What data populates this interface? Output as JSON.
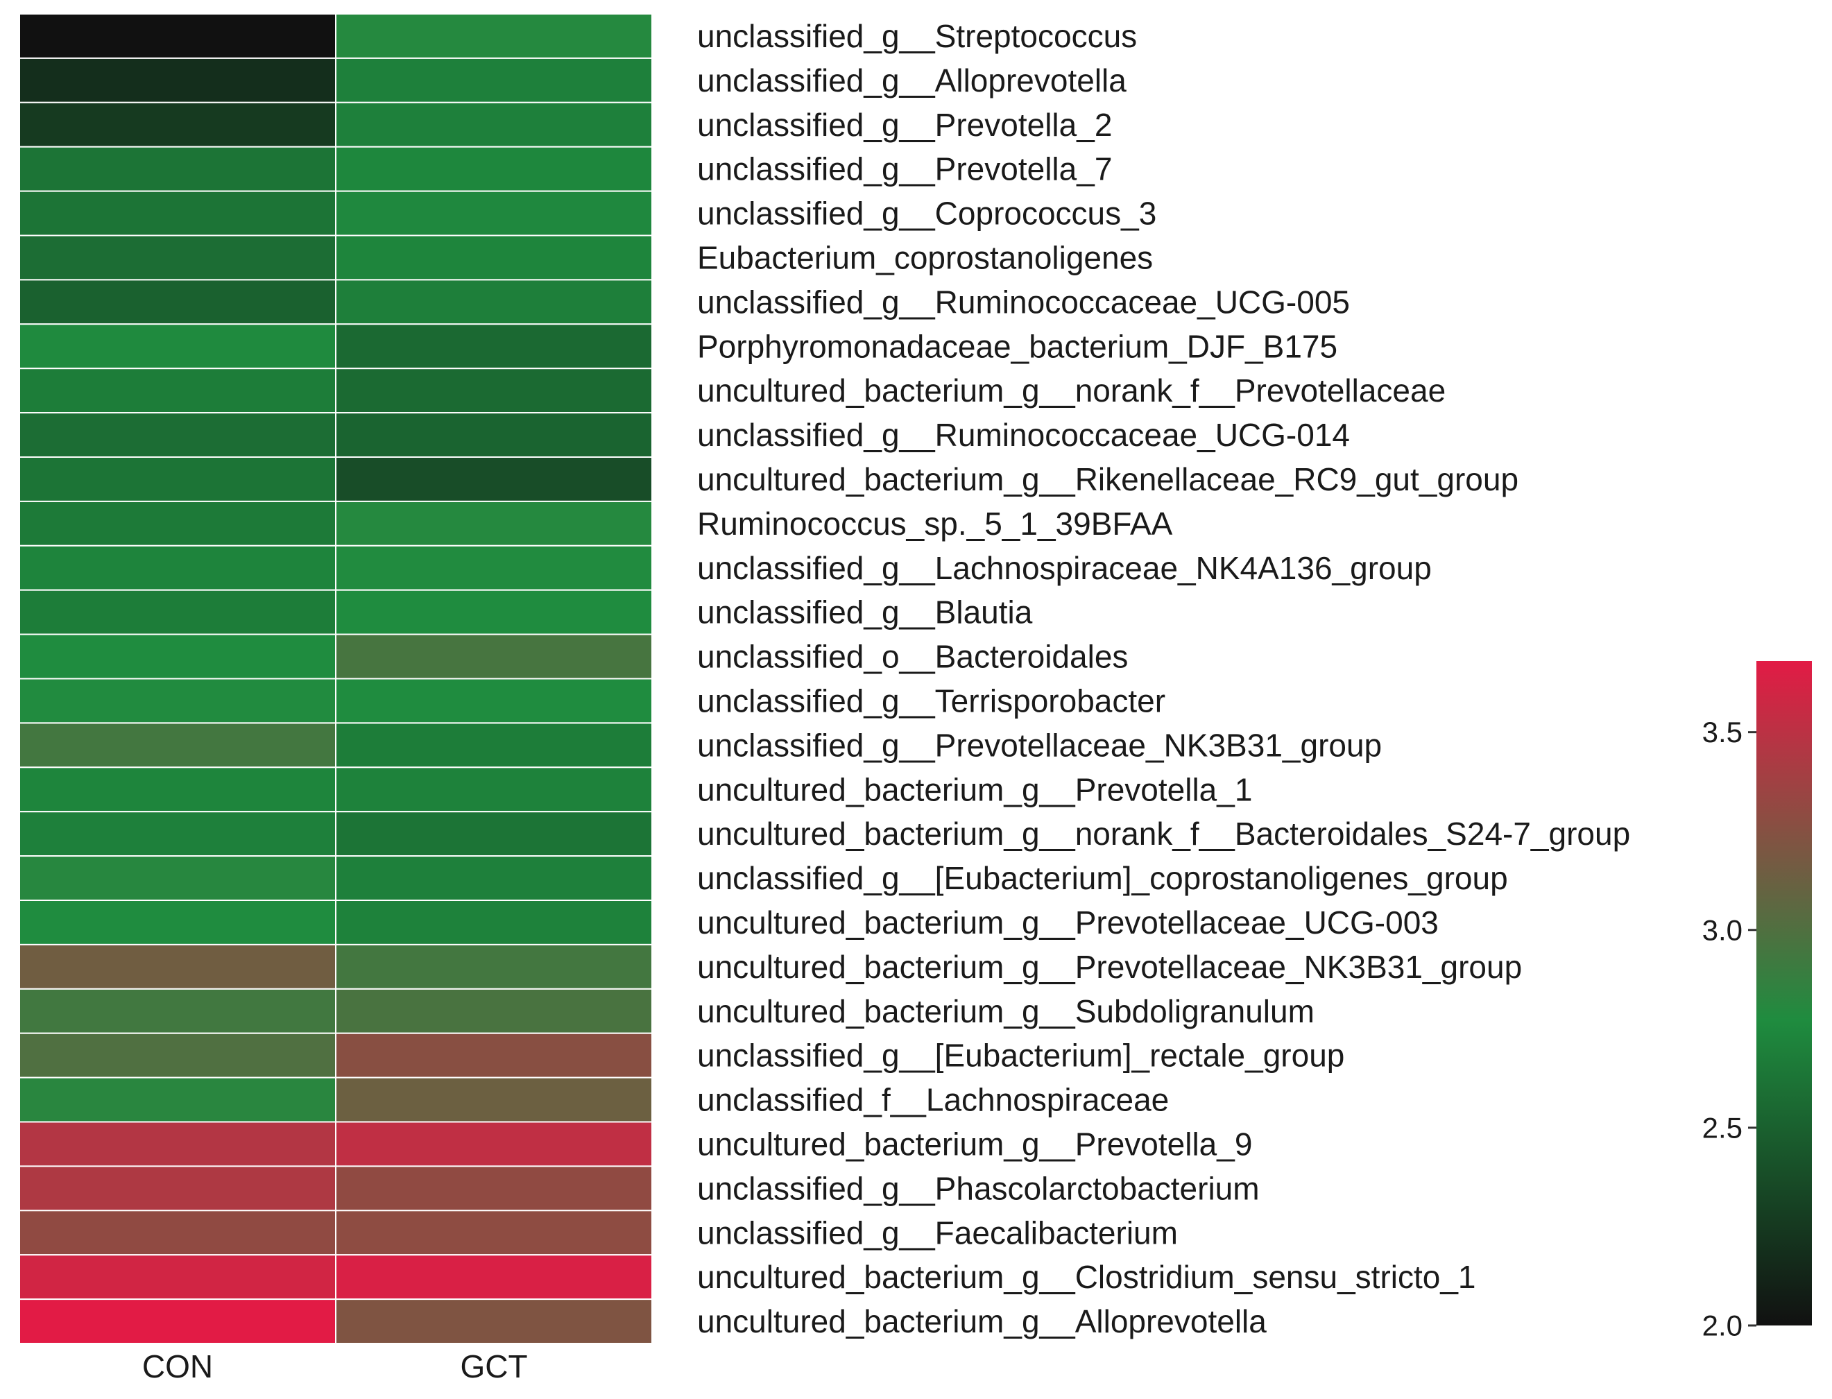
{
  "chart_data": {
    "type": "heatmap",
    "title": "",
    "columns": [
      "CON",
      "GCT"
    ],
    "rows": [
      "unclassified_g__Streptococcus",
      "unclassified_g__Alloprevotella",
      "unclassified_g__Prevotella_2",
      "unclassified_g__Prevotella_7",
      "unclassified_g__Coprococcus_3",
      "Eubacterium_coprostanoligenes",
      "unclassified_g__Ruminococcaceae_UCG-005",
      "Porphyromonadaceae_bacterium_DJF_B175",
      "uncultured_bacterium_g__norank_f__Prevotellaceae",
      "unclassified_g__Ruminococcaceae_UCG-014",
      "uncultured_bacterium_g__Rikenellaceae_RC9_gut_group",
      "Ruminococcus_sp._5_1_39BFAA",
      "unclassified_g__Lachnospiraceae_NK4A136_group",
      "unclassified_g__Blautia",
      "unclassified_o__Bacteroidales",
      "unclassified_g__Terrisporobacter",
      "unclassified_g__Prevotellaceae_NK3B31_group",
      "uncultured_bacterium_g__Prevotella_1",
      "uncultured_bacterium_g__norank_f__Bacteroidales_S24-7_group",
      "unclassified_g__[Eubacterium]_coprostanoligenes_group",
      "uncultured_bacterium_g__Prevotellaceae_UCG-003",
      "uncultured_bacterium_g__Prevotellaceae_NK3B31_group",
      "uncultured_bacterium_g__Subdoligranulum",
      "unclassified_g__[Eubacterium]_rectale_group",
      "unclassified_f__Lachnospiraceae",
      "uncultured_bacterium_g__Prevotella_9",
      "unclassified_g__Phascolarctobacterium",
      "unclassified_g__Faecalibacterium",
      "uncultured_bacterium_g__Clostridium_sensu_stricto_1",
      "uncultured_bacterium_g__Alloprevotella"
    ],
    "values": [
      [
        2.0,
        2.8
      ],
      [
        2.18,
        2.7
      ],
      [
        2.26,
        2.7
      ],
      [
        2.62,
        2.74
      ],
      [
        2.62,
        2.75
      ],
      [
        2.58,
        2.73
      ],
      [
        2.5,
        2.69
      ],
      [
        2.76,
        2.55
      ],
      [
        2.68,
        2.56
      ],
      [
        2.58,
        2.52
      ],
      [
        2.62,
        2.38
      ],
      [
        2.66,
        2.8
      ],
      [
        2.72,
        2.78
      ],
      [
        2.68,
        2.77
      ],
      [
        2.77,
        2.96
      ],
      [
        2.78,
        2.77
      ],
      [
        2.94,
        2.68
      ],
      [
        2.73,
        2.71
      ],
      [
        2.7,
        2.62
      ],
      [
        2.81,
        2.7
      ],
      [
        2.77,
        2.71
      ],
      [
        3.15,
        2.94
      ],
      [
        2.93,
        2.97
      ],
      [
        3.0,
        3.26
      ],
      [
        2.82,
        3.13
      ],
      [
        3.46,
        3.52
      ],
      [
        3.44,
        3.3
      ],
      [
        3.3,
        3.29
      ],
      [
        3.6,
        3.64
      ],
      [
        3.68,
        3.22
      ]
    ],
    "colorbar": {
      "min": 2.0,
      "max": 3.68,
      "ticks": [
        "2.0",
        "2.5",
        "3.0",
        "3.5"
      ],
      "tick_values": [
        2.0,
        2.5,
        3.0,
        3.5
      ]
    },
    "colors": {
      "low": "#111111",
      "mid": "#1f8c3f",
      "high": "#e21b45",
      "cell_border": "#ffffff",
      "text": "#1a1a1a"
    }
  }
}
